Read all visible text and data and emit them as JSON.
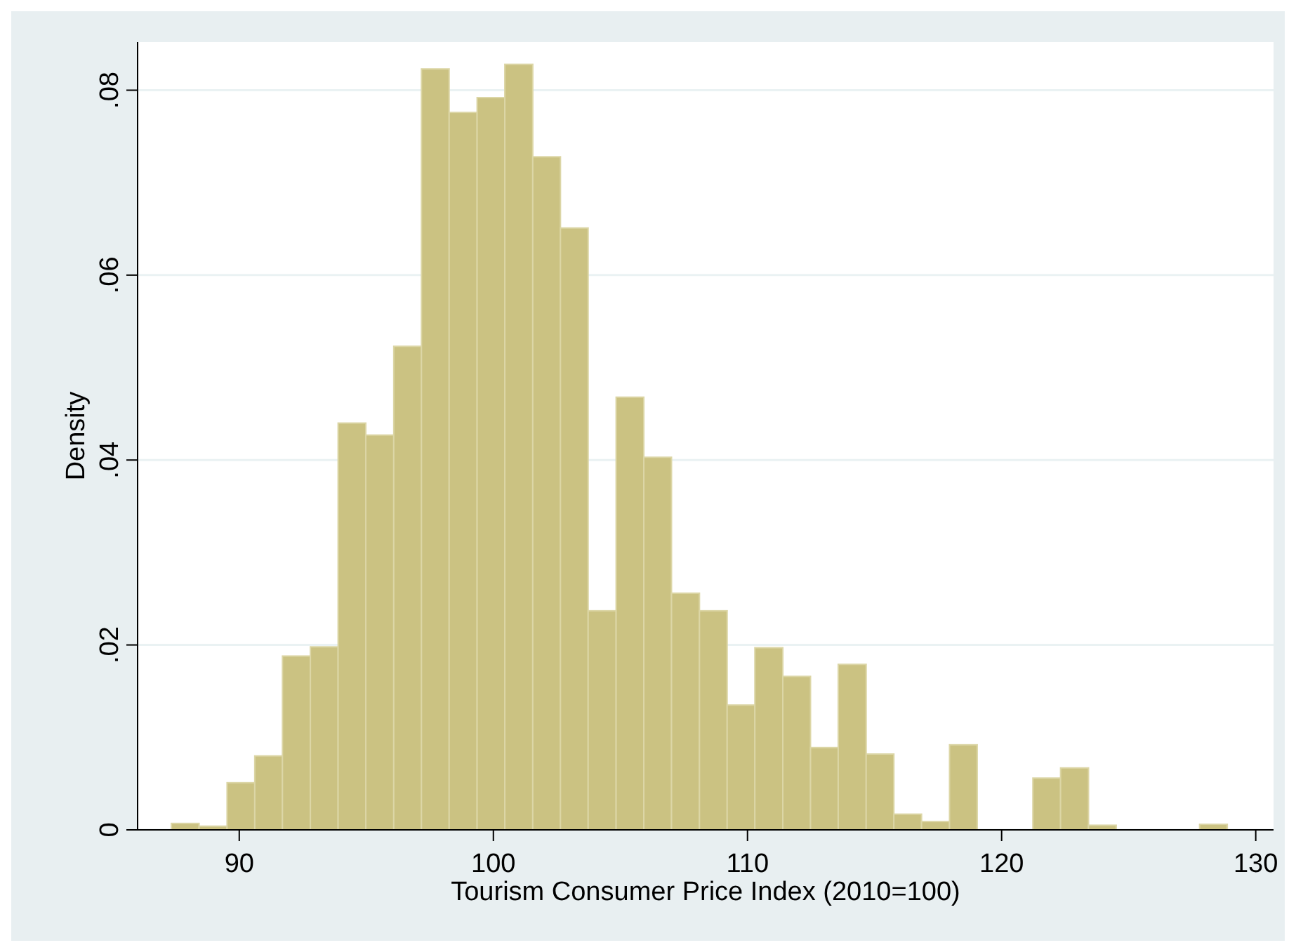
{
  "chart_data": {
    "type": "histogram",
    "xlabel": "Tourism Consumer Price Index (2010=100)",
    "ylabel": "Density",
    "bins": [
      87.33,
      88.42,
      89.52,
      90.61,
      91.7,
      92.8,
      93.89,
      94.98,
      96.08,
      97.17,
      98.26,
      99.36,
      100.45,
      101.55,
      102.64,
      103.73,
      104.83,
      105.92,
      107.01,
      108.11,
      109.2,
      110.29,
      111.39,
      112.48,
      113.57,
      114.67,
      115.76,
      116.85,
      117.95,
      119.04,
      120.14,
      121.23,
      122.32,
      123.42,
      124.51,
      125.6,
      126.7,
      127.79,
      128.88
    ],
    "values": [
      0.0007,
      0.0004,
      0.0051,
      0.008,
      0.0188,
      0.0198,
      0.044,
      0.0427,
      0.0523,
      0.0823,
      0.0776,
      0.0792,
      0.0828,
      0.0728,
      0.0651,
      0.0237,
      0.0468,
      0.0403,
      0.0256,
      0.0237,
      0.0135,
      0.0197,
      0.0166,
      0.0089,
      0.0179,
      0.0082,
      0.0017,
      0.0009,
      0.0092,
      0,
      0,
      0.0056,
      0.0067,
      0.0005,
      0,
      0,
      0,
      0.0006
    ],
    "color": "#cbc282",
    "xlim": [
      86,
      130.7
    ],
    "xticks": [
      90,
      100,
      110,
      120,
      130
    ],
    "ylim": [
      0,
      0.0852
    ],
    "yticks": [
      {
        "value": 0,
        "label": "0"
      },
      {
        "value": 0.02,
        "label": ".02"
      },
      {
        "value": 0.04,
        "label": ".04"
      },
      {
        "value": 0.06,
        "label": ".06"
      },
      {
        "value": 0.08,
        "label": ".08"
      }
    ],
    "grid": "y"
  }
}
